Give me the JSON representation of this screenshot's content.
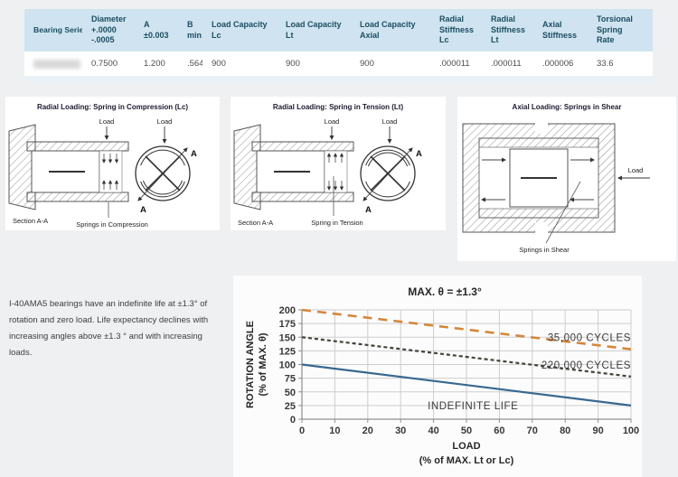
{
  "colors": {
    "page_bg": "#eff0f1",
    "table_header_bg": "#cfe4f0",
    "table_header_text": "#1c4d61",
    "series_orange": "#d4873b",
    "series_dark": "#44443a",
    "series_blue": "#39688f"
  },
  "table": {
    "columns": [
      "Bearing Series",
      "Diameter\n+.0000\n-.0005",
      "A\n±0.003",
      "B\nmin",
      "Load Capacity\nLc",
      "Load Capacity\nLt",
      "Load Capacity\nAxial",
      "Radial\nStiffness\nLc",
      "Radial\nStiffness\nLt",
      "Axial\nStiffness",
      "Torsional\nSpring\nRate"
    ],
    "rows": [
      [
        "",
        "0.7500",
        "1.200",
        ".564",
        "900",
        "900",
        "900",
        ".000011",
        ".000011",
        ".000006",
        "33.6"
      ]
    ]
  },
  "diagrams": [
    {
      "title": "Radial Loading: Spring in Compression (Lc)",
      "labels": {
        "load1": "Load",
        "load2": "Load",
        "section": "Section A-A",
        "spring": "Springs in Compression",
        "a_top": "A",
        "a_bottom": "A"
      }
    },
    {
      "title": "Radial Loading: Spring in Tension (Lt)",
      "labels": {
        "load1": "Load",
        "load2": "Load",
        "section": "Section A-A",
        "spring": "Spring in Tension",
        "a_top": "A",
        "a_bottom": "A"
      }
    },
    {
      "title": "Axial Loading: Springs in Shear",
      "labels": {
        "load": "Load",
        "spring": "Springs in Shear"
      }
    }
  ],
  "note": {
    "text": "I-40AMA5  bearings have an indefinite life at ±1.3° of rotation and zero load.  Life expectancy declines with increasing angles above ±1.3 ° and with increasing loads."
  },
  "chart_data": {
    "type": "line",
    "title": "MAX. θ = ±1.3°",
    "xlabel": "LOAD",
    "xlabel2": "(% of MAX. Lt or Lc)",
    "ylabel": "ROTATION ANGLE",
    "ylabel2": "(% of MAX. θ)",
    "xlim": [
      0,
      100
    ],
    "ylim": [
      0,
      200
    ],
    "xticks": [
      0,
      10,
      20,
      30,
      40,
      50,
      60,
      70,
      80,
      90,
      100
    ],
    "yticks": [
      0,
      25,
      50,
      75,
      100,
      125,
      150,
      175,
      200
    ],
    "grid": true,
    "legend_position": "inline-labels",
    "series": [
      {
        "name": "35,000 CYCLES",
        "x": [
          0,
          100
        ],
        "y": [
          200,
          128
        ],
        "color": "#d4873b",
        "dash": "10 7",
        "width": 2.6
      },
      {
        "name": "220,000 CYCLES",
        "x": [
          0,
          100
        ],
        "y": [
          150,
          78
        ],
        "color": "#44443a",
        "dash": "4 3",
        "width": 2.2
      },
      {
        "name": "INDEFINITE LIFE",
        "x": [
          0,
          100
        ],
        "y": [
          100,
          25
        ],
        "color": "#39688f",
        "dash": "",
        "width": 2.2
      }
    ],
    "annotations": [
      {
        "text": "35,000 CYCLES",
        "x": 100,
        "y": 150,
        "anchor": "end"
      },
      {
        "text": "220,000 CYCLES",
        "x": 100,
        "y": 99,
        "anchor": "end"
      },
      {
        "text": "INDEFINITE LIFE",
        "x": 52,
        "y": 25,
        "anchor": "middle"
      }
    ]
  }
}
